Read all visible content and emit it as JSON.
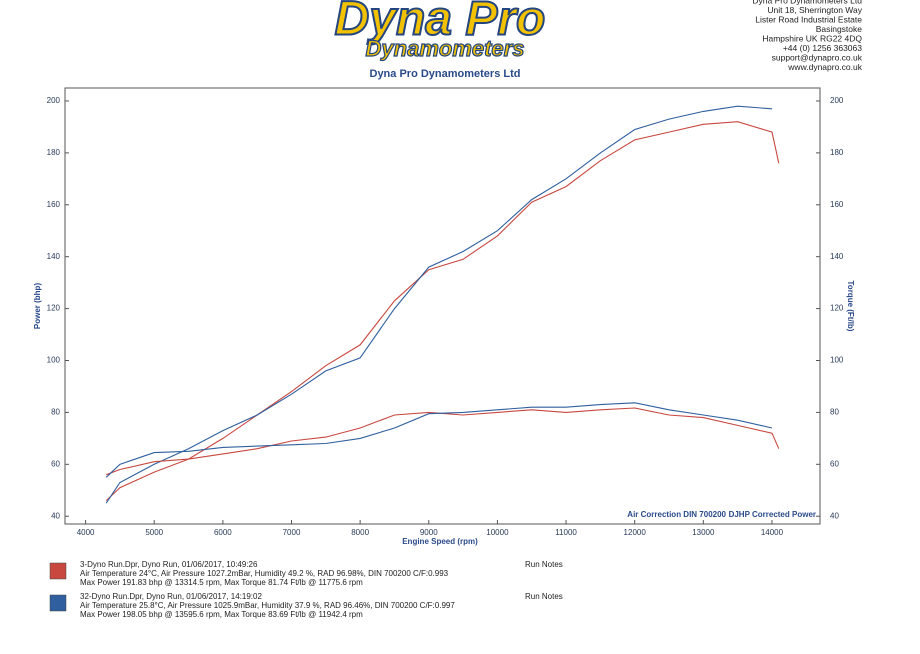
{
  "header": {
    "logo": "Dyna Pro",
    "logo_sub": "Dynamometers",
    "address": [
      "Dyna Pro Dynamometers Ltd",
      "Unit 18, Sherrington Way",
      "Lister Road Industrial Estate",
      "Basingstoke",
      "Hampshire UK RG22 4DQ",
      "+44 (0) 1256 363063",
      "support@dynapro.co.uk",
      "www.dynapro.co.uk"
    ]
  },
  "chart_data": {
    "type": "line",
    "title": "Dyna Pro Dynamometers Ltd",
    "x_label": "Engine Speed (rpm)",
    "y_label": "Power (bhp)",
    "y2_label": "Torque (Ft/lb)",
    "annotations": [
      "Air Correction DIN 700200",
      "DJHP Corrected Power"
    ],
    "x": [
      4300,
      4500,
      5000,
      5500,
      6000,
      6500,
      7000,
      7500,
      8000,
      8500,
      9000,
      9500,
      10000,
      10500,
      11000,
      11500,
      12000,
      12500,
      13000,
      13500,
      14000,
      14100,
      14150
    ],
    "series": [
      {
        "color": "#c84840",
        "values": [
          46,
          51,
          57,
          62,
          70,
          79,
          88,
          98,
          106,
          123,
          135,
          139,
          148,
          161,
          167,
          177,
          185,
          188,
          191,
          192,
          188,
          176,
          null
        ]
      },
      {
        "color": "#2f5f9e",
        "values": [
          45,
          53,
          60,
          66,
          73,
          79,
          87,
          96,
          101,
          120,
          136,
          142,
          150,
          162,
          170,
          180,
          189,
          193,
          196,
          198,
          197,
          null,
          197
        ]
      },
      {
        "color": "#c84840",
        "axis": "y2",
        "values": [
          56,
          58,
          61,
          62,
          64,
          66,
          69,
          70.5,
          74,
          79,
          80,
          79,
          80,
          81,
          80,
          81,
          81.7,
          79,
          78,
          75,
          72,
          66,
          null
        ]
      },
      {
        "color": "#2f5f9e",
        "axis": "y2",
        "values": [
          55,
          60,
          64.5,
          65,
          66.5,
          67,
          67.5,
          68,
          70,
          74,
          79.5,
          80,
          81,
          82,
          82,
          83,
          83.7,
          81,
          79,
          77,
          74,
          null,
          73
        ]
      }
    ],
    "xlim": [
      3700,
      14700
    ],
    "ylim": [
      37,
      205
    ],
    "y2lim": [
      37,
      205
    ],
    "xticks": [
      4000,
      5000,
      6000,
      7000,
      8000,
      9000,
      10000,
      11000,
      12000,
      13000,
      14000
    ],
    "yticks": [
      40,
      60,
      80,
      100,
      120,
      140,
      160,
      180,
      200
    ],
    "y2ticks": [
      40,
      60,
      80,
      100,
      120,
      140,
      160,
      180,
      200
    ],
    "grid": false
  },
  "runs": [
    {
      "lines": [
        "3-Dyno Run.Dpr,   Dyno Run,   01/06/2017,   10:49:26",
        "Air Temperature 24°C, Air Pressure 1027.2mBar, Humidity 49.2 %, RAD 96.98%,   DIN 700200  C/F:0.993",
        "Max Power 191.83 bhp @ 13314.5 rpm, Max Torque 81.74 Ft/lb @ 11775.6 rpm"
      ],
      "notes": "Run Notes"
    },
    {
      "lines": [
        "32-Dyno Run.Dpr,   Dyno Run,   01/06/2017,   14:19:02",
        "Air Temperature 25.8°C, Air Pressure 1025.9mBar, Humidity 37.9 %, RAD 96.46%,   DIN 700200  C/F:0.997",
        "Max Power 198.05 bhp @ 13595.6 rpm, Max Torque 83.69 Ft/lb @ 11942.4 rpm"
      ],
      "notes": "Run Notes"
    }
  ]
}
